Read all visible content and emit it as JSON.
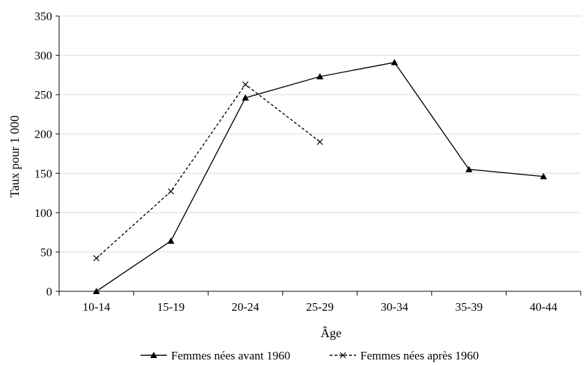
{
  "chart_data": {
    "type": "line",
    "categories": [
      "10-14",
      "15-19",
      "20-24",
      "25-29",
      "30-34",
      "35-39",
      "40-44"
    ],
    "series": [
      {
        "name": "Femmes nées avant 1960",
        "values": [
          0,
          64,
          246,
          273,
          291,
          155,
          146
        ],
        "marker": "triangle",
        "line_style": "solid",
        "color": "#000000"
      },
      {
        "name": "Femmes nées après 1960",
        "values": [
          42,
          127,
          263,
          190,
          null,
          null,
          null
        ],
        "marker": "x",
        "line_style": "dashed",
        "color": "#000000"
      }
    ],
    "title": "",
    "xlabel": "Âge",
    "ylabel": "Taux pour 1 000",
    "ylim": [
      0,
      350
    ],
    "yticks": [
      0,
      50,
      100,
      150,
      200,
      250,
      300,
      350
    ],
    "grid": true,
    "legend_position": "bottom"
  }
}
